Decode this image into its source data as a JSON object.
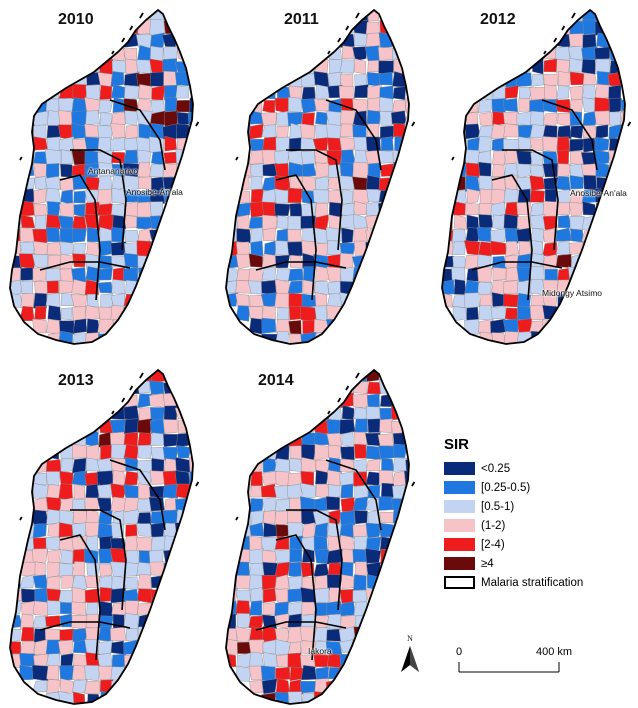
{
  "panels": [
    {
      "year": "2010",
      "labels": [
        "Antananarivo",
        "Anosibe-An'ala"
      ]
    },
    {
      "year": "2011",
      "labels": []
    },
    {
      "year": "2012",
      "labels": [
        "Anosibe-An'ala",
        "Midongy Atsimo"
      ]
    },
    {
      "year": "2013",
      "labels": []
    },
    {
      "year": "2014",
      "labels": [
        "Iakora"
      ]
    }
  ],
  "legend": {
    "title": "SIR",
    "items": [
      {
        "label": "<0.25",
        "color": "#0a2a7a"
      },
      {
        "label": "[0.25-0.5)",
        "color": "#1f78e0"
      },
      {
        "label": "[0.5-1)",
        "color": "#c2d4f2"
      },
      {
        "label": "(1-2)",
        "color": "#f6c3c8"
      },
      {
        "label": "[2-4)",
        "color": "#ee1c1c"
      },
      {
        "label": "≥4",
        "color": "#6b0a0a"
      },
      {
        "label": "Malaria stratification",
        "color": "outline"
      }
    ]
  },
  "north_arrow": "N",
  "scale_bar": {
    "start": "0",
    "end": "400 km"
  }
}
